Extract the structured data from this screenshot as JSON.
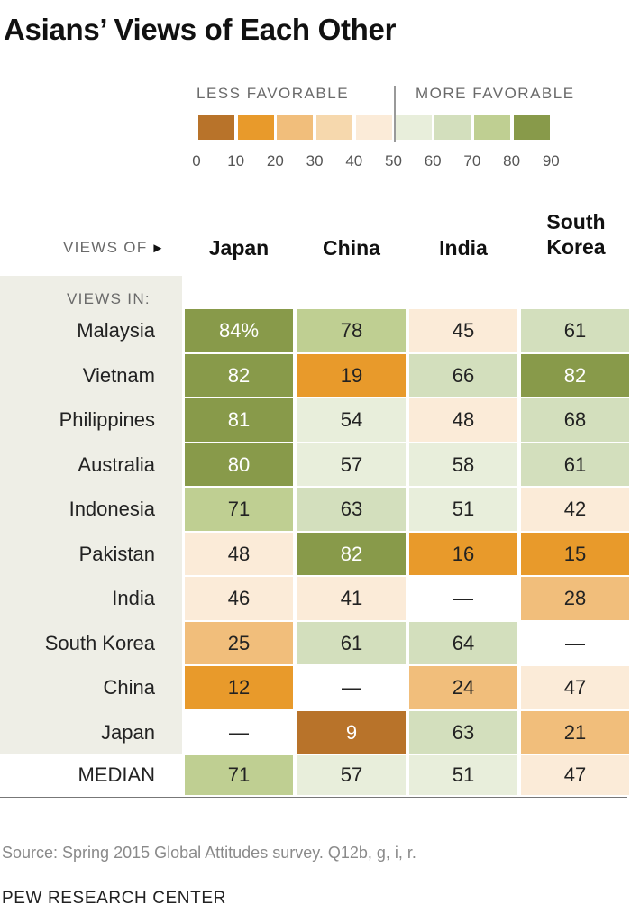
{
  "title": "Asians’ Views of Each Other",
  "legend": {
    "less_label": "LESS FAVORABLE",
    "more_label": "MORE FAVORABLE",
    "ticks": [
      "0",
      "10",
      "20",
      "30",
      "40",
      "50",
      "60",
      "70",
      "80",
      "90"
    ],
    "bins": [
      {
        "from": 0,
        "to": 10,
        "color": "#b8732a"
      },
      {
        "from": 10,
        "to": 20,
        "color": "#e89a2b"
      },
      {
        "from": 20,
        "to": 30,
        "color": "#f1be7b"
      },
      {
        "from": 30,
        "to": 40,
        "color": "#f6d8ad"
      },
      {
        "from": 40,
        "to": 50,
        "color": "#fbebd8"
      },
      {
        "from": 50,
        "to": 60,
        "color": "#e8eedb"
      },
      {
        "from": 60,
        "to": 70,
        "color": "#d3dfbd"
      },
      {
        "from": 70,
        "to": 80,
        "color": "#bfcf92"
      },
      {
        "from": 80,
        "to": 90,
        "color": "#889a4a"
      }
    ]
  },
  "header": {
    "views_of": "VIEWS OF",
    "views_of_arrow": "►",
    "views_in": "VIEWS IN:"
  },
  "chart_data": {
    "type": "table",
    "columns": [
      "Japan",
      "China",
      "India",
      "South Korea"
    ],
    "rows": [
      {
        "label": "Malaysia",
        "values": [
          "84%",
          "78",
          "45",
          "61"
        ],
        "numeric": [
          84,
          78,
          45,
          61
        ]
      },
      {
        "label": "Vietnam",
        "values": [
          "82",
          "19",
          "66",
          "82"
        ],
        "numeric": [
          82,
          19,
          66,
          82
        ]
      },
      {
        "label": "Philippines",
        "values": [
          "81",
          "54",
          "48",
          "68"
        ],
        "numeric": [
          81,
          54,
          48,
          68
        ]
      },
      {
        "label": "Australia",
        "values": [
          "80",
          "57",
          "58",
          "61"
        ],
        "numeric": [
          80,
          57,
          58,
          61
        ]
      },
      {
        "label": "Indonesia",
        "values": [
          "71",
          "63",
          "51",
          "42"
        ],
        "numeric": [
          71,
          63,
          51,
          42
        ]
      },
      {
        "label": "Pakistan",
        "values": [
          "48",
          "82",
          "16",
          "15"
        ],
        "numeric": [
          48,
          82,
          16,
          15
        ]
      },
      {
        "label": "India",
        "values": [
          "46",
          "41",
          "—",
          "28"
        ],
        "numeric": [
          46,
          41,
          null,
          28
        ]
      },
      {
        "label": "South Korea",
        "values": [
          "25",
          "61",
          "64",
          "—"
        ],
        "numeric": [
          25,
          61,
          64,
          null
        ]
      },
      {
        "label": "China",
        "values": [
          "12",
          "—",
          "24",
          "47"
        ],
        "numeric": [
          12,
          null,
          24,
          47
        ]
      },
      {
        "label": "Japan",
        "values": [
          "—",
          "9",
          "63",
          "21"
        ],
        "numeric": [
          null,
          9,
          63,
          21
        ]
      }
    ],
    "median": {
      "label": "MEDIAN",
      "values": [
        "71",
        "57",
        "51",
        "47"
      ],
      "numeric": [
        71,
        57,
        51,
        47
      ]
    },
    "dark_text_color": "#222222",
    "light_text_color": "#ffffff"
  },
  "footer": {
    "source": "Source: Spring 2015 Global Attitudes survey. Q12b, g, i, r.",
    "credit": "PEW RESEARCH CENTER"
  }
}
